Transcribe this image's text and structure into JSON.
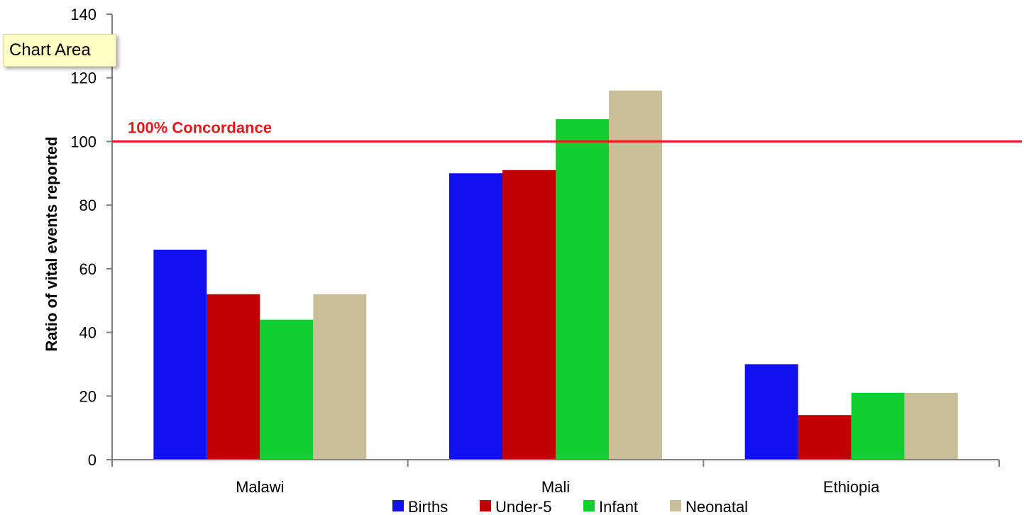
{
  "tooltip": {
    "text": "Chart Area"
  },
  "reference_line": {
    "label": "100% Concordance",
    "value": 100,
    "color": "#e31a1c"
  },
  "colors": {
    "Births": "#1010f0",
    "Under-5": "#c00000",
    "Infant": "#10d030",
    "Neonatal": "#c8bf98"
  },
  "chart_data": {
    "type": "bar",
    "title": "",
    "xlabel": "",
    "ylabel": "Ratio of vital events reported",
    "ylim": [
      0,
      140
    ],
    "yticks": [
      0,
      20,
      40,
      60,
      80,
      100,
      120,
      140
    ],
    "categories": [
      "Malawi",
      "Mali",
      "Ethiopia"
    ],
    "series": [
      {
        "name": "Births",
        "values": [
          66,
          90,
          30
        ]
      },
      {
        "name": "Under-5",
        "values": [
          52,
          91,
          14
        ]
      },
      {
        "name": "Infant",
        "values": [
          44,
          107,
          21
        ]
      },
      {
        "name": "Neonatal",
        "values": [
          52,
          116,
          21
        ]
      }
    ],
    "legend_position": "bottom",
    "grid": false
  }
}
